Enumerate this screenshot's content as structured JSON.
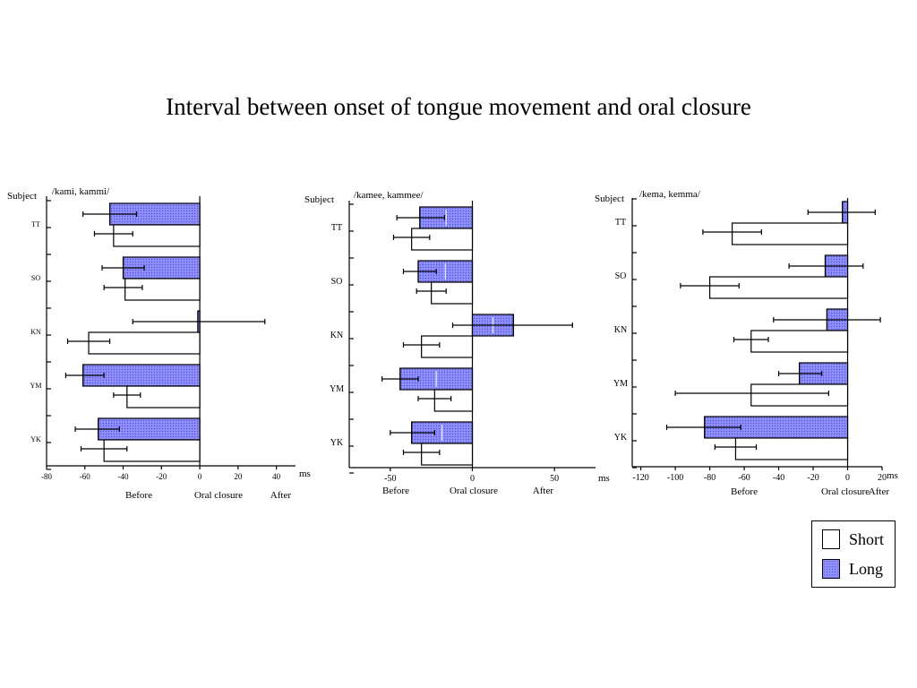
{
  "slide": {
    "title": "Interval between onset of tongue movement and oral closure"
  },
  "legend": {
    "items": [
      {
        "label": "Short",
        "color": "#ffffff"
      },
      {
        "label": "Long",
        "color": "#8f8fff"
      }
    ]
  },
  "chart_data": [
    {
      "type": "bar",
      "orientation": "horizontal",
      "title": "/kami, kammi/",
      "ylabel": "Subject",
      "xlabel": "ms",
      "bottom_labels": [
        "Before",
        "Oral closure",
        "After"
      ],
      "xlim": [
        -80,
        50
      ],
      "xticks": [
        -80,
        -60,
        -40,
        -20,
        0,
        20,
        40
      ],
      "categories": [
        "TT",
        "SO",
        "KN",
        "YM",
        "YK"
      ],
      "series": [
        {
          "name": "Long",
          "values": [
            -47,
            -40,
            -1,
            -61,
            -53
          ],
          "err_low": [
            -61,
            -51,
            -35,
            -70,
            -65
          ],
          "err_high": [
            -33,
            -29,
            34,
            -50,
            -42
          ]
        },
        {
          "name": "Short",
          "values": [
            -45,
            -39,
            -58,
            -38,
            -50
          ],
          "err_low": [
            -55,
            -50,
            -69,
            -45,
            -62
          ],
          "err_high": [
            -35,
            -30,
            -47,
            -31,
            -38
          ]
        }
      ]
    },
    {
      "type": "bar",
      "orientation": "horizontal",
      "title": "/kamee, kammee/",
      "ylabel": "Subject",
      "xlabel": "ms",
      "bottom_labels": [
        "Before",
        "Oral closure",
        "After"
      ],
      "xlim": [
        -75,
        75
      ],
      "xticks": [
        -50,
        0,
        50
      ],
      "categories": [
        "TT",
        "SO",
        "KN",
        "YM",
        "YK"
      ],
      "series": [
        {
          "name": "Long",
          "values": [
            -32,
            -33,
            25,
            -44,
            -37
          ],
          "err_low": [
            -46,
            -42,
            -12,
            -55,
            -50
          ],
          "err_high": [
            -17,
            -22,
            61,
            -33,
            -23
          ]
        },
        {
          "name": "Short",
          "values": [
            -37,
            -25,
            -31,
            -23,
            -31
          ],
          "err_low": [
            -48,
            -34,
            -42,
            -33,
            -42
          ],
          "err_high": [
            -26,
            -16,
            -20,
            -13,
            -20
          ]
        }
      ]
    },
    {
      "type": "bar",
      "orientation": "horizontal",
      "title": "/kema, kemma/",
      "ylabel": "Subject",
      "xlabel": "ms",
      "bottom_labels": [
        "Before",
        "Oral closure",
        "After"
      ],
      "xlim": [
        -125,
        20
      ],
      "xticks": [
        -120,
        -100,
        -80,
        -60,
        -40,
        -20,
        0,
        20
      ],
      "categories": [
        "TT",
        "SO",
        "KN",
        "YM",
        "YK"
      ],
      "series": [
        {
          "name": "Long",
          "values": [
            -3,
            -13,
            -12,
            -28,
            -83
          ],
          "err_low": [
            -23,
            -34,
            -43,
            -40,
            -105
          ],
          "err_high": [
            16,
            9,
            19,
            -15,
            -62
          ]
        },
        {
          "name": "Short",
          "values": [
            -67,
            -80,
            -56,
            -56,
            -65
          ],
          "err_low": [
            -84,
            -97,
            -66,
            -100,
            -77
          ],
          "err_high": [
            -50,
            -63,
            -46,
            -11,
            -53
          ]
        }
      ]
    }
  ]
}
